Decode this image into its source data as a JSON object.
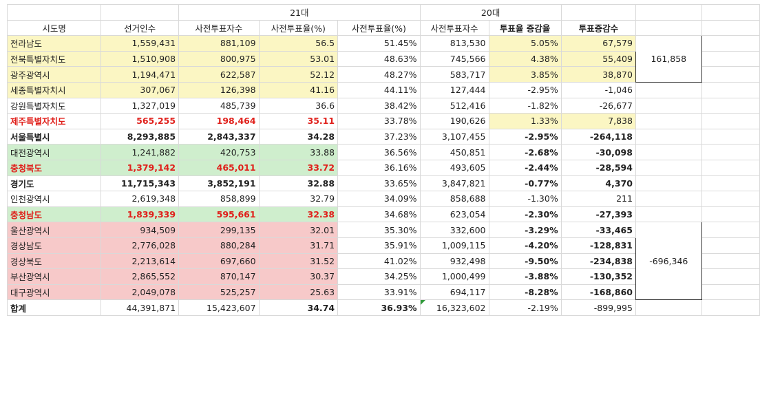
{
  "groups": {
    "g21": "21대",
    "g20": "20대"
  },
  "headers": [
    "시도명",
    "선거인수",
    "사전투표자수",
    "사전투표율(%)",
    "사전투표율(%)",
    "사전투표자수",
    "투표율 증감율",
    "투표증감수"
  ],
  "rows": [
    {
      "name": "전라남도",
      "voters": "1,559,431",
      "pre21": "881,109",
      "rate21": "56.5",
      "rate20": "51.45%",
      "pre20": "813,530",
      "rdiff": "5.05%",
      "vdiff": "67,579"
    },
    {
      "name": "전북특별자치도",
      "voters": "1,510,908",
      "pre21": "800,975",
      "rate21": "53.01",
      "rate20": "48.63%",
      "pre20": "745,566",
      "rdiff": "4.38%",
      "vdiff": "55,409"
    },
    {
      "name": "광주광역시",
      "voters": "1,194,471",
      "pre21": "622,587",
      "rate21": "52.12",
      "rate20": "48.27%",
      "pre20": "583,717",
      "rdiff": "3.85%",
      "vdiff": "38,870"
    },
    {
      "name": "세종특별자치시",
      "voters": "307,067",
      "pre21": "126,398",
      "rate21": "41.16",
      "rate20": "44.11%",
      "pre20": "127,444",
      "rdiff": "-2.95%",
      "vdiff": "-1,046"
    },
    {
      "name": "강원특별자치도",
      "voters": "1,327,019",
      "pre21": "485,739",
      "rate21": "36.6",
      "rate20": "38.42%",
      "pre20": "512,416",
      "rdiff": "-1.82%",
      "vdiff": "-26,677"
    },
    {
      "name": "제주특별자치도",
      "voters": "565,255",
      "pre21": "198,464",
      "rate21": "35.11",
      "rate20": "33.78%",
      "pre20": "190,626",
      "rdiff": "1.33%",
      "vdiff": "7,838"
    },
    {
      "name": "서울특별시",
      "voters": "8,293,885",
      "pre21": "2,843,337",
      "rate21": "34.28",
      "rate20": "37.23%",
      "pre20": "3,107,455",
      "rdiff": "-2.95%",
      "vdiff": "-264,118"
    },
    {
      "name": "대전광역시",
      "voters": "1,241,882",
      "pre21": "420,753",
      "rate21": "33.88",
      "rate20": "36.56%",
      "pre20": "450,851",
      "rdiff": "-2.68%",
      "vdiff": "-30,098"
    },
    {
      "name": "충청북도",
      "voters": "1,379,142",
      "pre21": "465,011",
      "rate21": "33.72",
      "rate20": "36.16%",
      "pre20": "493,605",
      "rdiff": "-2.44%",
      "vdiff": "-28,594"
    },
    {
      "name": "경기도",
      "voters": "11,715,343",
      "pre21": "3,852,191",
      "rate21": "32.88",
      "rate20": "33.65%",
      "pre20": "3,847,821",
      "rdiff": "-0.77%",
      "vdiff": "4,370"
    },
    {
      "name": "인천광역시",
      "voters": "2,619,348",
      "pre21": "858,899",
      "rate21": "32.79",
      "rate20": "34.09%",
      "pre20": "858,688",
      "rdiff": "-1.30%",
      "vdiff": "211"
    },
    {
      "name": "충청남도",
      "voters": "1,839,339",
      "pre21": "595,661",
      "rate21": "32.38",
      "rate20": "34.68%",
      "pre20": "623,054",
      "rdiff": "-2.30%",
      "vdiff": "-27,393"
    },
    {
      "name": "울산광역시",
      "voters": "934,509",
      "pre21": "299,135",
      "rate21": "32.01",
      "rate20": "35.30%",
      "pre20": "332,600",
      "rdiff": "-3.29%",
      "vdiff": "-33,465"
    },
    {
      "name": "경상남도",
      "voters": "2,776,028",
      "pre21": "880,284",
      "rate21": "31.71",
      "rate20": "35.91%",
      "pre20": "1,009,115",
      "rdiff": "-4.20%",
      "vdiff": "-128,831"
    },
    {
      "name": "경상북도",
      "voters": "2,213,614",
      "pre21": "697,660",
      "rate21": "31.52",
      "rate20": "41.02%",
      "pre20": "932,498",
      "rdiff": "-9.50%",
      "vdiff": "-234,838"
    },
    {
      "name": "부산광역시",
      "voters": "2,865,552",
      "pre21": "870,147",
      "rate21": "30.37",
      "rate20": "34.25%",
      "pre20": "1,000,499",
      "rdiff": "-3.88%",
      "vdiff": "-130,352"
    },
    {
      "name": "대구광역시",
      "voters": "2,049,078",
      "pre21": "525,257",
      "rate21": "25.63",
      "rate20": "33.91%",
      "pre20": "694,117",
      "rdiff": "-8.28%",
      "vdiff": "-168,860"
    },
    {
      "name": "합계",
      "voters": "44,391,871",
      "pre21": "15,423,607",
      "rate21": "34.74",
      "rate20": "36.93%",
      "pre20": "16,323,602",
      "rdiff": "-2.19%",
      "vdiff": "-899,995"
    }
  ],
  "totals": {
    "upper": "161,858",
    "lower": "-696,346"
  },
  "colors": {
    "yellow": "#fbf6c3",
    "green": "#cfeecd",
    "pink": "#f7c9c9",
    "red": "#e0201b"
  }
}
